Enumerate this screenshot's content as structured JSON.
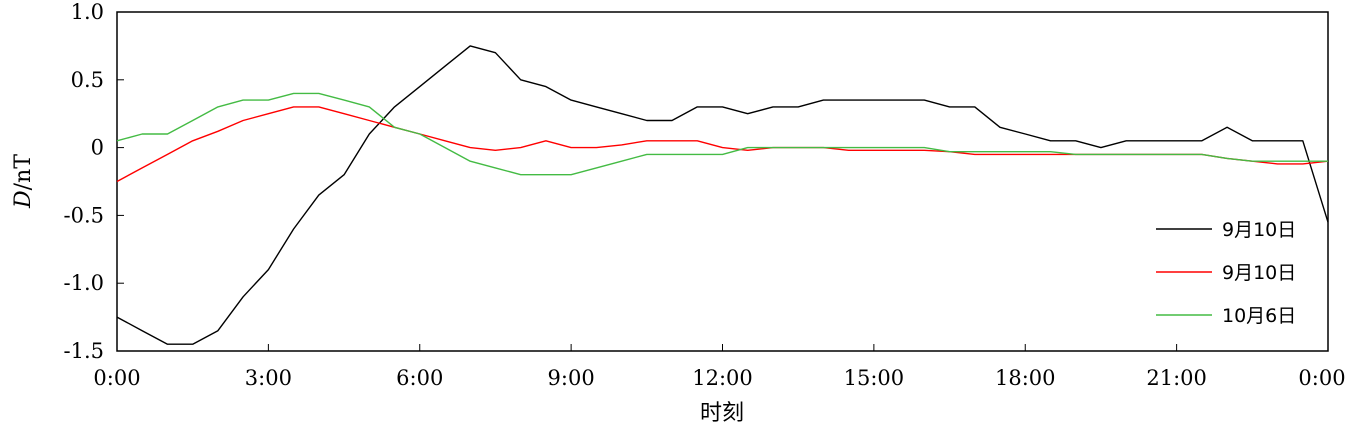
{
  "chart_data": {
    "type": "line",
    "xlabel": "时刻",
    "ylabel_var": "D",
    "ylabel_unit": "/nT",
    "xlim": [
      0,
      24
    ],
    "ylim": [
      -1.5,
      1.0
    ],
    "x_ticks": [
      0,
      3,
      6,
      9,
      12,
      15,
      18,
      21,
      24
    ],
    "x_tick_labels": [
      "0:00",
      "3:00",
      "6:00",
      "9:00",
      "12:00",
      "15:00",
      "18:00",
      "21:00",
      "0:00"
    ],
    "y_ticks": [
      -1.5,
      -1.0,
      -0.5,
      0,
      0.5,
      1.0
    ],
    "y_tick_labels": [
      "-1.5",
      "-1.0",
      "-0.5",
      "0",
      "0.5",
      "1.0"
    ],
    "grid": false,
    "legend_position": "lower-right",
    "series": [
      {
        "name": "9月10日",
        "color": "#000000",
        "x": [
          0,
          0.5,
          1.0,
          1.5,
          2.0,
          2.5,
          3.0,
          3.5,
          4.0,
          4.5,
          5.0,
          5.5,
          6.0,
          6.5,
          7.0,
          7.5,
          8.0,
          8.5,
          9.0,
          9.5,
          10.0,
          10.5,
          11.0,
          11.5,
          12.0,
          12.5,
          13.0,
          13.5,
          14.0,
          14.5,
          15.0,
          15.5,
          16.0,
          16.5,
          17.0,
          17.5,
          18.0,
          18.5,
          19.0,
          19.5,
          20.0,
          20.5,
          21.0,
          21.5,
          22.0,
          22.5,
          23.0,
          23.5,
          24.0
        ],
        "values": [
          -1.25,
          -1.35,
          -1.45,
          -1.45,
          -1.35,
          -1.1,
          -0.9,
          -0.6,
          -0.35,
          -0.2,
          0.1,
          0.3,
          0.45,
          0.6,
          0.75,
          0.7,
          0.5,
          0.45,
          0.35,
          0.3,
          0.25,
          0.2,
          0.2,
          0.3,
          0.3,
          0.25,
          0.3,
          0.3,
          0.35,
          0.35,
          0.35,
          0.35,
          0.35,
          0.3,
          0.3,
          0.15,
          0.1,
          0.05,
          0.05,
          0.0,
          0.05,
          0.05,
          0.05,
          0.05,
          0.15,
          0.05,
          0.05,
          0.05,
          -0.55
        ]
      },
      {
        "name": "9月10日",
        "color": "#ff0000",
        "x": [
          0,
          0.5,
          1.0,
          1.5,
          2.0,
          2.5,
          3.0,
          3.5,
          4.0,
          4.5,
          5.0,
          5.5,
          6.0,
          6.5,
          7.0,
          7.5,
          8.0,
          8.5,
          9.0,
          9.5,
          10.0,
          10.5,
          11.0,
          11.5,
          12.0,
          12.5,
          13.0,
          13.5,
          14.0,
          14.5,
          15.0,
          15.5,
          16.0,
          16.5,
          17.0,
          17.5,
          18.0,
          18.5,
          19.0,
          19.5,
          20.0,
          20.5,
          21.0,
          21.5,
          22.0,
          22.5,
          23.0,
          23.5,
          24.0
        ],
        "values": [
          -0.25,
          -0.15,
          -0.05,
          0.05,
          0.12,
          0.2,
          0.25,
          0.3,
          0.3,
          0.25,
          0.2,
          0.15,
          0.1,
          0.05,
          0.0,
          -0.02,
          0.0,
          0.05,
          0.0,
          0.0,
          0.02,
          0.05,
          0.05,
          0.05,
          0.0,
          -0.02,
          0.0,
          0.0,
          0.0,
          -0.02,
          -0.02,
          -0.02,
          -0.02,
          -0.03,
          -0.05,
          -0.05,
          -0.05,
          -0.05,
          -0.05,
          -0.05,
          -0.05,
          -0.05,
          -0.05,
          -0.05,
          -0.08,
          -0.1,
          -0.12,
          -0.12,
          -0.1
        ]
      },
      {
        "name": "10月6日",
        "color": "#44bb44",
        "x": [
          0,
          0.5,
          1.0,
          1.5,
          2.0,
          2.5,
          3.0,
          3.5,
          4.0,
          4.5,
          5.0,
          5.5,
          6.0,
          6.5,
          7.0,
          7.5,
          8.0,
          8.5,
          9.0,
          9.5,
          10.0,
          10.5,
          11.0,
          11.5,
          12.0,
          12.5,
          13.0,
          13.5,
          14.0,
          14.5,
          15.0,
          15.5,
          16.0,
          16.5,
          17.0,
          17.5,
          18.0,
          18.5,
          19.0,
          19.5,
          20.0,
          20.5,
          21.0,
          21.5,
          22.0,
          22.5,
          23.0,
          23.5,
          24.0
        ],
        "values": [
          0.05,
          0.1,
          0.1,
          0.2,
          0.3,
          0.35,
          0.35,
          0.4,
          0.4,
          0.35,
          0.3,
          0.15,
          0.1,
          0.0,
          -0.1,
          -0.15,
          -0.2,
          -0.2,
          -0.2,
          -0.15,
          -0.1,
          -0.05,
          -0.05,
          -0.05,
          -0.05,
          0.0,
          0.0,
          0.0,
          0.0,
          0.0,
          0.0,
          0.0,
          0.0,
          -0.03,
          -0.03,
          -0.03,
          -0.03,
          -0.03,
          -0.05,
          -0.05,
          -0.05,
          -0.05,
          -0.05,
          -0.05,
          -0.08,
          -0.1,
          -0.1,
          -0.1,
          -0.1
        ]
      }
    ]
  }
}
